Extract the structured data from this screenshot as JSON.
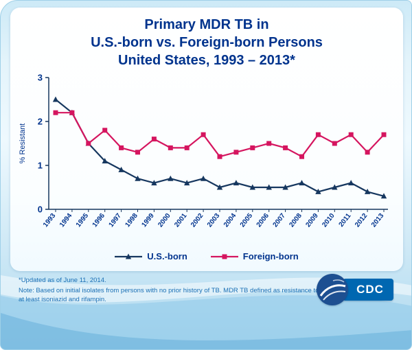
{
  "slide": {
    "title": {
      "line1": "Primary MDR TB in",
      "line2": "U.S.-born vs. Foreign-born Persons",
      "line3": "United States, 1993 – 2013*"
    },
    "footnotes": {
      "updated": "*Updated as of June 11, 2014.",
      "note": "Note: Based on initial isolates from persons with no prior history of TB. MDR TB defined as resistance to at least isoniazid and rifampin."
    },
    "logo": {
      "cdc_text": "CDC"
    }
  },
  "chart_data": {
    "type": "line",
    "title": "Primary MDR TB in U.S.-born vs. Foreign-born Persons, United States, 1993–2013",
    "x": [
      1993,
      1994,
      1995,
      1996,
      1997,
      1998,
      1999,
      2000,
      2001,
      2002,
      2003,
      2004,
      2005,
      2006,
      2007,
      2008,
      2009,
      2010,
      2011,
      2012,
      2013
    ],
    "series": [
      {
        "name": "U.S.-born",
        "color": "#16375f",
        "marker": "triangle",
        "values": [
          2.5,
          2.2,
          1.5,
          1.1,
          0.9,
          0.7,
          0.6,
          0.7,
          0.6,
          0.7,
          0.5,
          0.6,
          0.5,
          0.5,
          0.5,
          0.6,
          0.4,
          0.5,
          0.6,
          0.4,
          0.3
        ]
      },
      {
        "name": "Foreign-born",
        "color": "#d5155f",
        "marker": "square",
        "values": [
          2.2,
          2.2,
          1.5,
          1.8,
          1.4,
          1.3,
          1.6,
          1.4,
          1.4,
          1.7,
          1.2,
          1.3,
          1.4,
          1.5,
          1.4,
          1.2,
          1.7,
          1.5,
          1.7,
          1.3,
          1.7
        ]
      }
    ],
    "xlabel": "",
    "ylabel": "% Resistant",
    "ylim": [
      0,
      3
    ],
    "yticks": [
      0,
      1,
      2,
      3
    ],
    "grid": false,
    "legend_position": "bottom",
    "axis_color": "#16375f",
    "tick_label_color": "#00338d"
  }
}
